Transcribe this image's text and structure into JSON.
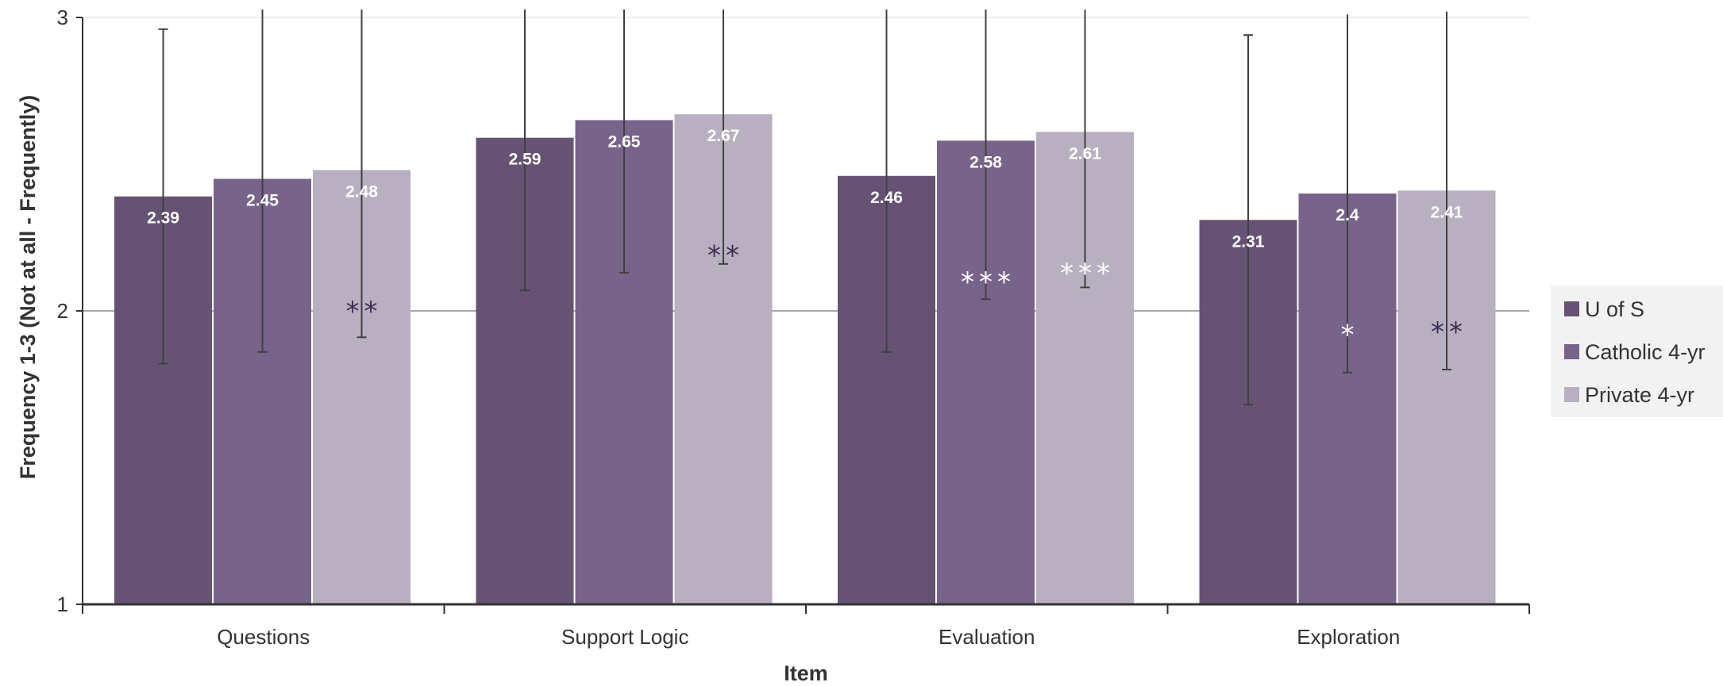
{
  "chart_data": {
    "type": "bar",
    "title": "",
    "xlabel": "Item",
    "ylabel": "Frequency  1-3 (Not at all - Frequently)",
    "ylim": [
      1,
      3
    ],
    "yticks": [
      "1",
      "2",
      "3"
    ],
    "grid": true,
    "legend_position": "right",
    "categories": [
      "Questions",
      "Support Logic",
      "Evaluation",
      "Exploration"
    ],
    "series": [
      {
        "name": "U of S",
        "color": "#665374",
        "values": [
          2.39,
          2.59,
          2.46,
          2.31
        ],
        "labels": [
          "2.39",
          "2.59",
          "2.46",
          "2.31"
        ],
        "error_bars": [
          [
            1.82,
            2.96
          ],
          [
            2.07,
            3.11
          ],
          [
            1.86,
            3.06
          ],
          [
            1.68,
            2.94
          ]
        ],
        "significance": [
          "",
          "",
          "",
          ""
        ]
      },
      {
        "name": "Catholic 4-yr",
        "color": "#78638a",
        "values": [
          2.45,
          2.65,
          2.58,
          2.4
        ],
        "labels": [
          "2.45",
          "2.65",
          "2.58",
          "2.4"
        ],
        "error_bars": [
          [
            1.86,
            3.04
          ],
          [
            2.13,
            3.17
          ],
          [
            2.04,
            3.12
          ],
          [
            1.79,
            3.01
          ]
        ],
        "significance": [
          "",
          "",
          "***",
          "*"
        ]
      },
      {
        "name": "Private 4-yr",
        "color": "#b8b0c0",
        "values": [
          2.48,
          2.67,
          2.61,
          2.41
        ],
        "labels": [
          "2.48",
          "2.67",
          "2.61",
          "2.41"
        ],
        "error_bars": [
          [
            1.91,
            3.05
          ],
          [
            2.16,
            3.18
          ],
          [
            2.08,
            3.14
          ],
          [
            1.8,
            3.02
          ]
        ],
        "significance": [
          "**",
          "**",
          "***",
          "**"
        ]
      }
    ]
  }
}
